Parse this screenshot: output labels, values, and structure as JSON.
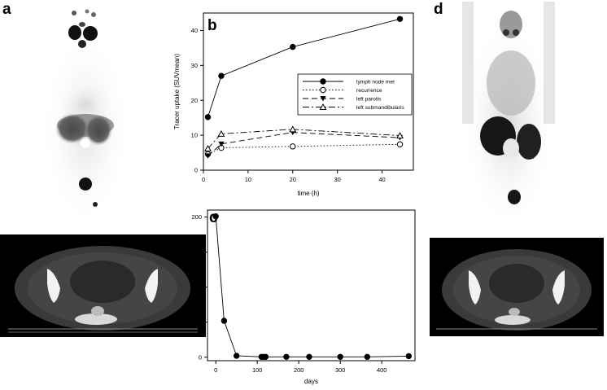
{
  "panels": {
    "a": "a",
    "b": "b",
    "c": "c",
    "d": "d"
  },
  "chart_data": [
    {
      "type": "line",
      "panel": "b",
      "xlabel": "time (h)",
      "ylabel": "Tracer uptake (SUVmean)",
      "xlim": [
        0,
        47
      ],
      "ylim": [
        0,
        45
      ],
      "xticks": [
        0,
        10,
        20,
        30,
        40
      ],
      "yticks": [
        0,
        10,
        20,
        30,
        40
      ],
      "grid": false,
      "legend_position": "right",
      "series": [
        {
          "name": "lymph node met",
          "marker": "filled-circle",
          "dash": "solid",
          "x": [
            1,
            4,
            20,
            44
          ],
          "y": [
            15.2,
            27,
            35.3,
            43.3
          ]
        },
        {
          "name": "recurrence",
          "marker": "open-circle",
          "dash": "dotted",
          "x": [
            1,
            4,
            20,
            44
          ],
          "y": [
            4.6,
            6.4,
            6.8,
            7.4
          ]
        },
        {
          "name": "left parotis",
          "marker": "filled-triangle-down",
          "dash": "dashed",
          "x": [
            1,
            4,
            20,
            44
          ],
          "y": [
            4.1,
            7.5,
            10.8,
            9.3
          ]
        },
        {
          "name": "left submandibularis",
          "marker": "open-triangle-up",
          "dash": "dashdot",
          "x": [
            1,
            4,
            20,
            44
          ],
          "y": [
            6.2,
            10.4,
            11.7,
            9.9
          ]
        }
      ]
    },
    {
      "type": "line",
      "panel": "c",
      "xlabel": "days",
      "ylabel": "",
      "xlim": [
        -20,
        480
      ],
      "ylim": [
        -5,
        210
      ],
      "xticks": [
        0,
        100,
        200,
        300,
        400
      ],
      "yticks": [
        0,
        50,
        100,
        150,
        200
      ],
      "grid": false,
      "series": [
        {
          "marker": "filled-circle",
          "dash": "solid",
          "x": [
            0,
            20,
            50,
            110,
            115,
            120,
            170,
            225,
            300,
            365,
            465
          ],
          "y": [
            201,
            52,
            2,
            0.5,
            0.5,
            0.5,
            0.5,
            0.5,
            0.5,
            0.5,
            1.5
          ]
        }
      ]
    }
  ]
}
